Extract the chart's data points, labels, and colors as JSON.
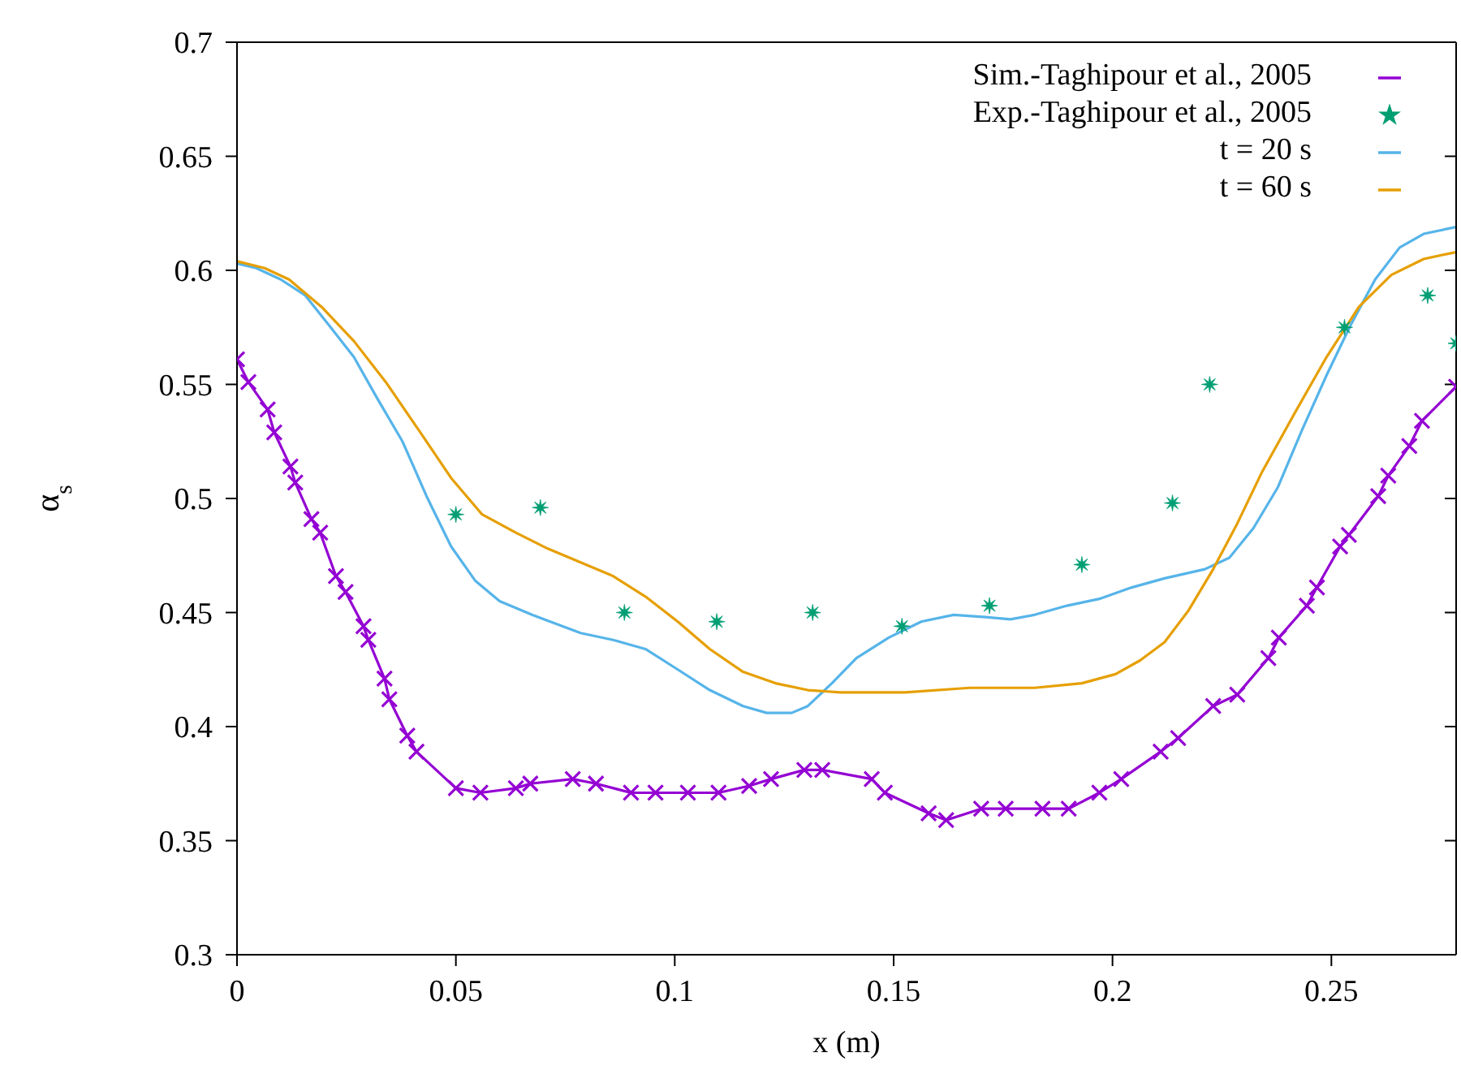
{
  "chart_data": {
    "type": "line",
    "xlabel": "x (m)",
    "ylabel": "α$_{s}$",
    "xlim": [
      0,
      0.2785
    ],
    "xticks": [
      0,
      0.05,
      0.1,
      0.15,
      0.2,
      0.25
    ],
    "ylim": [
      0.3,
      0.7
    ],
    "yticks": [
      0.3,
      0.35,
      0.4,
      0.45,
      0.5,
      0.55,
      0.6,
      0.65,
      0.7
    ],
    "grid": false,
    "legend": "top right",
    "series": [
      {
        "name": "Sim.-Taghipour et al., 2005",
        "marker": "cross",
        "color": "#9400d3",
        "x": [
          0,
          0.0026,
          0.007,
          0.0085,
          0.0122,
          0.0133,
          0.017,
          0.019,
          0.0226,
          0.0248,
          0.0289,
          0.03,
          0.0337,
          0.0348,
          0.0389,
          0.041,
          0.05,
          0.0556,
          0.0637,
          0.067,
          0.0767,
          0.082,
          0.09,
          0.0956,
          0.103,
          0.11,
          0.117,
          0.122,
          0.1296,
          0.1337,
          0.145,
          0.148,
          0.158,
          0.162,
          0.17,
          0.1756,
          0.184,
          0.19,
          0.197,
          0.202,
          0.211,
          0.215,
          0.223,
          0.2285,
          0.2356,
          0.238,
          0.2444,
          0.2467,
          0.252,
          0.254,
          0.2607,
          0.263,
          0.2678,
          0.2707,
          0.2785
        ],
        "values": [
          0.561,
          0.551,
          0.539,
          0.529,
          0.514,
          0.507,
          0.491,
          0.485,
          0.466,
          0.459,
          0.444,
          0.438,
          0.421,
          0.412,
          0.396,
          0.389,
          0.373,
          0.371,
          0.373,
          0.375,
          0.377,
          0.375,
          0.371,
          0.371,
          0.371,
          0.371,
          0.374,
          0.377,
          0.381,
          0.381,
          0.377,
          0.371,
          0.362,
          0.359,
          0.364,
          0.364,
          0.364,
          0.364,
          0.371,
          0.377,
          0.389,
          0.395,
          0.409,
          0.414,
          0.43,
          0.439,
          0.453,
          0.461,
          0.479,
          0.484,
          0.501,
          0.51,
          0.523,
          0.534,
          0.549
        ]
      },
      {
        "name": "Exp.-Taghipour et al., 2005",
        "type": "scatter",
        "marker": "star",
        "color": "#009e73",
        "x": [
          0.05,
          0.0693,
          0.0885,
          0.1096,
          0.1315,
          0.1519,
          0.1719,
          0.193,
          0.2137,
          0.2222,
          0.253,
          0.272,
          0.2785
        ],
        "values": [
          0.493,
          0.496,
          0.45,
          0.446,
          0.45,
          0.444,
          0.453,
          0.471,
          0.498,
          0.55,
          0.575,
          0.589,
          0.568
        ]
      },
      {
        "name": "t = 20 s",
        "marker": "none",
        "color": "#56b4e9",
        "x": [
          0,
          0.0044,
          0.01,
          0.0156,
          0.021,
          0.0267,
          0.032,
          0.0378,
          0.0433,
          0.0489,
          0.0544,
          0.06,
          0.0674,
          0.0785,
          0.0859,
          0.0933,
          0.1007,
          0.108,
          0.1156,
          0.121,
          0.1267,
          0.1304,
          0.1359,
          0.1415,
          0.1489,
          0.1563,
          0.1637,
          0.171,
          0.1767,
          0.1822,
          0.1896,
          0.197,
          0.2044,
          0.2119,
          0.2211,
          0.2267,
          0.2322,
          0.2378,
          0.2433,
          0.2489,
          0.2544,
          0.26,
          0.2656,
          0.2711,
          0.2785
        ],
        "values": [
          0.603,
          0.601,
          0.596,
          0.589,
          0.576,
          0.562,
          0.544,
          0.525,
          0.501,
          0.479,
          0.464,
          0.455,
          0.449,
          0.441,
          0.438,
          0.434,
          0.425,
          0.416,
          0.409,
          0.406,
          0.406,
          0.409,
          0.419,
          0.43,
          0.439,
          0.446,
          0.449,
          0.448,
          0.447,
          0.449,
          0.453,
          0.456,
          0.461,
          0.465,
          0.469,
          0.474,
          0.487,
          0.505,
          0.53,
          0.554,
          0.576,
          0.596,
          0.61,
          0.616,
          0.619
        ]
      },
      {
        "name": "t = 60 s",
        "marker": "none",
        "color": "#e69f00",
        "x": [
          0,
          0.0063,
          0.0119,
          0.0193,
          0.0267,
          0.034,
          0.0415,
          0.0489,
          0.056,
          0.0637,
          0.071,
          0.0785,
          0.0859,
          0.0933,
          0.1007,
          0.108,
          0.1156,
          0.123,
          0.1304,
          0.1378,
          0.1526,
          0.1674,
          0.1822,
          0.193,
          0.2007,
          0.2063,
          0.2119,
          0.2174,
          0.223,
          0.2285,
          0.234,
          0.2415,
          0.2489,
          0.2563,
          0.2637,
          0.2711,
          0.2785
        ],
        "values": [
          0.604,
          0.601,
          0.596,
          0.584,
          0.569,
          0.551,
          0.53,
          0.509,
          0.493,
          0.485,
          0.478,
          0.472,
          0.466,
          0.457,
          0.446,
          0.434,
          0.424,
          0.419,
          0.416,
          0.415,
          0.415,
          0.417,
          0.417,
          0.419,
          0.423,
          0.429,
          0.437,
          0.451,
          0.469,
          0.489,
          0.511,
          0.537,
          0.562,
          0.584,
          0.598,
          0.605,
          0.608
        ]
      }
    ]
  }
}
